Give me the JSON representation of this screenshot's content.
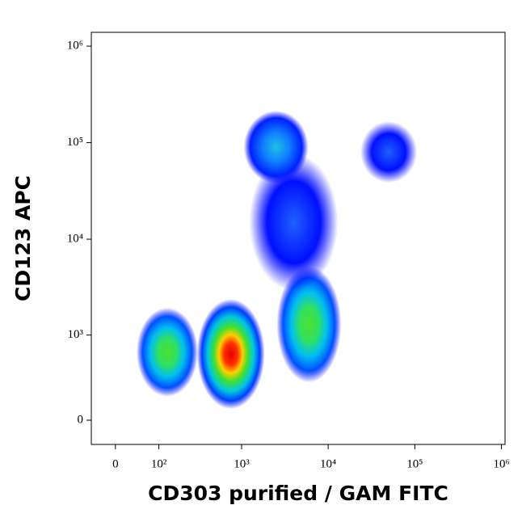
{
  "chart_data": {
    "type": "scatter",
    "x_label": "CD303 purified / GAM FITC",
    "y_label": "CD123 APC",
    "scale": "asinh",
    "x_asinh_width": 70,
    "y_asinh_width": 267,
    "xlim": [
      -48,
      1100000
    ],
    "ylim": [
      -163,
      1390000
    ],
    "xticks": [
      0,
      {
        "value": 100,
        "label": "10²"
      },
      {
        "value": 1000,
        "label": "10³"
      },
      {
        "value": 10000,
        "label": "10⁴"
      },
      {
        "value": 100000,
        "label": "10⁵"
      },
      {
        "value": 1000000,
        "label": "10⁶"
      }
    ],
    "yticks": [
      0,
      {
        "value": 1000,
        "label": "10³"
      },
      {
        "value": 10000,
        "label": "10⁴"
      },
      {
        "value": 100000,
        "label": "10⁵"
      },
      {
        "value": 1000000,
        "label": "10⁶"
      }
    ],
    "series": [
      {
        "x": [
          130,
          750,
          6000,
          4000,
          2500,
          50000
        ],
        "values": [
          650,
          620,
          1300,
          15000,
          90000,
          80000
        ]
      }
    ]
  }
}
